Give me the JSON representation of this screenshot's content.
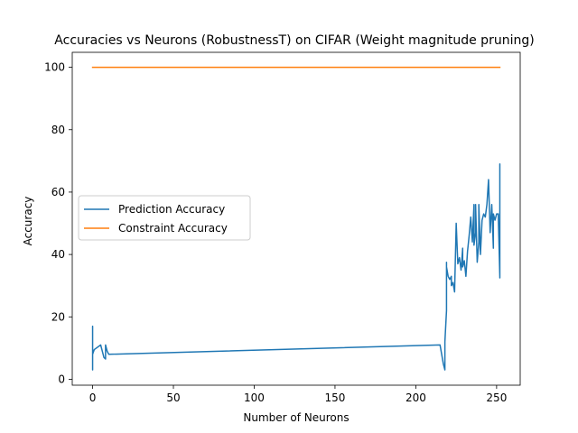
{
  "colors": {
    "prediction": "#1f77b4",
    "constraint": "#ff7f0e"
  },
  "chart_data": {
    "type": "line",
    "title": "Accuracies vs Neurons (RobustnessT) on CIFAR (Weight magnitude pruning)",
    "xlabel": "Number of Neurons",
    "ylabel": "Accuracy",
    "xlim": [
      -12.6,
      264.6
    ],
    "ylim": [
      -1.9,
      104.8
    ],
    "xticks": [
      0,
      50,
      100,
      150,
      200,
      250
    ],
    "yticks": [
      0,
      20,
      40,
      60,
      80,
      100
    ],
    "grid": false,
    "legend_position": "center-left",
    "series": [
      {
        "name": "Prediction Accuracy",
        "color": "#1f77b4",
        "x": [
          0,
          0,
          0,
          0,
          0,
          1,
          5,
          7,
          8,
          8,
          9,
          10,
          215,
          216,
          217,
          218,
          218,
          219,
          219,
          219,
          220,
          221,
          222,
          222,
          223,
          224,
          225,
          226,
          227,
          228,
          229,
          229,
          230,
          231,
          232,
          233,
          234,
          235,
          236,
          236,
          237,
          237,
          238,
          239,
          239,
          240,
          241,
          242,
          243,
          244,
          245,
          246,
          247,
          248,
          248,
          249,
          250,
          251,
          252,
          252,
          252,
          252
        ],
        "y": [
          8,
          17,
          3,
          10,
          8,
          9.5,
          11,
          7,
          6.5,
          11,
          9,
          8,
          11,
          8,
          5,
          3,
          12,
          22,
          37.5,
          36,
          33,
          32,
          33,
          30,
          31,
          28,
          50,
          37,
          39,
          35,
          42,
          36,
          38,
          33,
          41,
          46,
          52,
          44,
          56,
          43,
          47,
          56,
          37.5,
          44,
          56,
          40,
          51,
          53,
          52,
          56,
          64,
          47,
          56,
          42,
          53,
          51,
          53,
          53,
          33,
          69,
          32.5,
          53
        ]
      },
      {
        "name": "Constraint Accuracy",
        "color": "#ff7f0e",
        "x": [
          0,
          252
        ],
        "y": [
          100,
          100
        ]
      }
    ]
  }
}
